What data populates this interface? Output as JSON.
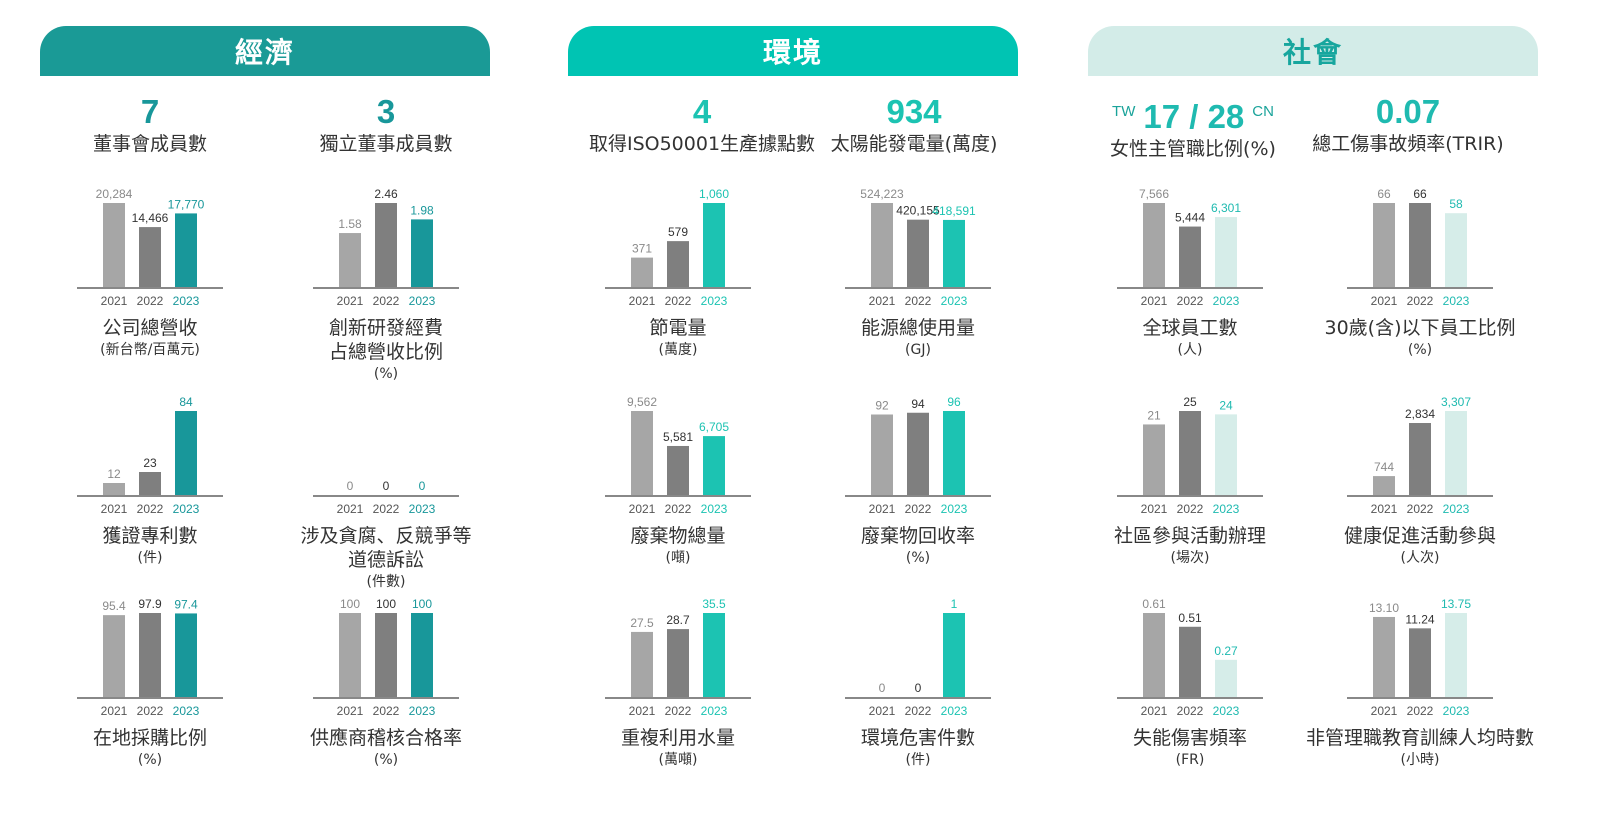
{
  "colors": {
    "econ_header": "#1a9a96",
    "env_header": "#00c4b3",
    "social_header": "#d3ece8",
    "econ_accent": "#18979a",
    "env_accent": "#1cc3b2",
    "social_accent_text": "#1fbab0",
    "social_bar": "#d6ede9",
    "bar_2021": "#a6a6a6",
    "bar_2022": "#7f7f7f",
    "axis": "#888888"
  },
  "headers": [
    {
      "id": "econ",
      "label": "經濟"
    },
    {
      "id": "env",
      "label": "環境"
    },
    {
      "id": "social",
      "label": "社會"
    }
  ],
  "kpis": [
    {
      "value": "7",
      "label": "董事會成員數"
    },
    {
      "value": "3",
      "label": "獨立董事成員數"
    },
    {
      "value": "4",
      "label": "取得ISO50001生產據點數"
    },
    {
      "value": "934",
      "label": "太陽能發電量(萬度)"
    },
    {
      "value": "17 / 28",
      "prefix": "TW",
      "suffix": "CN",
      "label": "女性主管職比例(%)"
    },
    {
      "value": "0.07",
      "label": "總工傷事故頻率(TRIR)"
    }
  ],
  "chart_data": [
    {
      "type": "bar",
      "title": "公司總營收",
      "unit": "(新台幣/百萬元)",
      "categories": [
        "2021",
        "2022",
        "2023"
      ],
      "values": [
        20284,
        14466,
        17770
      ],
      "labels": [
        "20,284",
        "14,466",
        "17,770"
      ]
    },
    {
      "type": "bar",
      "title": "創新研發經費占總營收比例",
      "title_lines": [
        "創新研發經費",
        "占總營收比例"
      ],
      "unit": "(%)",
      "categories": [
        "2021",
        "2022",
        "2023"
      ],
      "values": [
        1.58,
        2.46,
        1.98
      ],
      "labels": [
        "1.58",
        "2.46",
        "1.98"
      ]
    },
    {
      "type": "bar",
      "title": "節電量",
      "unit": "(萬度)",
      "categories": [
        "2021",
        "2022",
        "2023"
      ],
      "values": [
        371,
        579,
        1060
      ],
      "labels": [
        "371",
        "579",
        "1,060"
      ]
    },
    {
      "type": "bar",
      "title": "能源總使用量",
      "unit": "(GJ)",
      "categories": [
        "2021",
        "2022",
        "2023"
      ],
      "values": [
        524223,
        420155,
        418591
      ],
      "labels": [
        "524,223",
        "420,155",
        "418,591"
      ]
    },
    {
      "type": "bar",
      "title": "全球員工數",
      "unit": "(人)",
      "categories": [
        "2021",
        "2022",
        "2023"
      ],
      "values": [
        7566,
        5444,
        6301
      ],
      "labels": [
        "7,566",
        "5,444",
        "6,301"
      ]
    },
    {
      "type": "bar",
      "title": "30歲(含)以下員工比例",
      "unit": "(%)",
      "categories": [
        "2021",
        "2022",
        "2023"
      ],
      "values": [
        66,
        66,
        58
      ],
      "labels": [
        "66",
        "66",
        "58"
      ]
    },
    {
      "type": "bar",
      "title": "獲證專利數",
      "unit": "(件)",
      "categories": [
        "2021",
        "2022",
        "2023"
      ],
      "values": [
        12,
        23,
        84
      ],
      "labels": [
        "12",
        "23",
        "84"
      ]
    },
    {
      "type": "bar",
      "title": "涉及貪腐、反競爭等道德訴訟",
      "title_lines": [
        "涉及貪腐、反競爭等",
        "道德訴訟"
      ],
      "unit": "(件數)",
      "categories": [
        "2021",
        "2022",
        "2023"
      ],
      "values": [
        0,
        0,
        0
      ],
      "labels": [
        "0",
        "0",
        "0"
      ]
    },
    {
      "type": "bar",
      "title": "廢棄物總量",
      "unit": "(噸)",
      "categories": [
        "2021",
        "2022",
        "2023"
      ],
      "values": [
        9562,
        5581,
        6705
      ],
      "labels": [
        "9,562",
        "5,581",
        "6,705"
      ]
    },
    {
      "type": "bar",
      "title": "廢棄物回收率",
      "unit": "(%)",
      "categories": [
        "2021",
        "2022",
        "2023"
      ],
      "values": [
        92,
        94,
        96
      ],
      "labels": [
        "92",
        "94",
        "96"
      ]
    },
    {
      "type": "bar",
      "title": "社區參與活動辦理",
      "unit": "(場次)",
      "categories": [
        "2021",
        "2022",
        "2023"
      ],
      "values": [
        21,
        25,
        24
      ],
      "labels": [
        "21",
        "25",
        "24"
      ]
    },
    {
      "type": "bar",
      "title": "健康促進活動參與",
      "unit": "(人次)",
      "categories": [
        "2021",
        "2022",
        "2023"
      ],
      "values": [
        744,
        2834,
        3307
      ],
      "labels": [
        "744",
        "2,834",
        "3,307"
      ]
    },
    {
      "type": "bar",
      "title": "在地採購比例",
      "unit": "(%)",
      "categories": [
        "2021",
        "2022",
        "2023"
      ],
      "values": [
        95.4,
        97.9,
        97.4
      ],
      "labels": [
        "95.4",
        "97.9",
        "97.4"
      ]
    },
    {
      "type": "bar",
      "title": "供應商稽核合格率",
      "unit": "(%)",
      "categories": [
        "2021",
        "2022",
        "2023"
      ],
      "values": [
        100,
        100,
        100
      ],
      "labels": [
        "100",
        "100",
        "100"
      ]
    },
    {
      "type": "bar",
      "title": "重複利用水量",
      "unit": "(萬噸)",
      "categories": [
        "2021",
        "2022",
        "2023"
      ],
      "values": [
        27.5,
        28.7,
        35.5
      ],
      "labels": [
        "27.5",
        "28.7",
        "35.5"
      ]
    },
    {
      "type": "bar",
      "title": "環境危害件數",
      "unit": "(件)",
      "categories": [
        "2021",
        "2022",
        "2023"
      ],
      "values": [
        0,
        0,
        1
      ],
      "labels": [
        "0",
        "0",
        "1"
      ]
    },
    {
      "type": "bar",
      "title": "失能傷害頻率",
      "unit": "(FR)",
      "categories": [
        "2021",
        "2022",
        "2023"
      ],
      "values": [
        0.61,
        0.51,
        0.27
      ],
      "labels": [
        "0.61",
        "0.51",
        "0.27"
      ]
    },
    {
      "type": "bar",
      "title": "非管理職教育訓練人均時數",
      "unit": "(小時)",
      "categories": [
        "2021",
        "2022",
        "2023"
      ],
      "values": [
        13.1,
        11.24,
        13.75
      ],
      "labels": [
        "13.10",
        "11.24",
        "13.75"
      ]
    }
  ]
}
